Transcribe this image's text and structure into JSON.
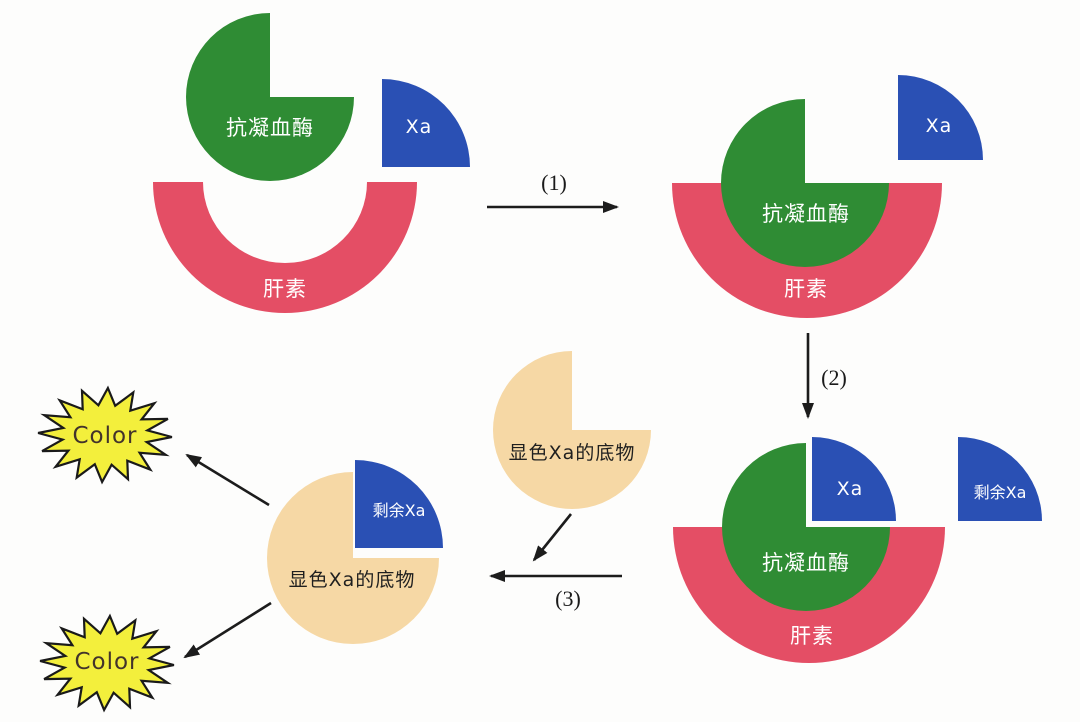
{
  "labels": {
    "antithrombin": "抗凝血酶",
    "heparin": "肝素",
    "factor_xa": "Xa",
    "residual_xa": "剩余Xa",
    "chromogenic_substrate": "显色Xa的底物",
    "color_result": "Color"
  },
  "steps": {
    "s1": "(1)",
    "s2": "(2)",
    "s3": "(3)"
  },
  "colors": {
    "antithrombin-green": "#2f8c34",
    "heparin-pink": "#e44e65",
    "xa-blue": "#2a50b4",
    "substrate-tan": "#f6d8a5",
    "burst-yellow": "#f3ef3c",
    "arrow-black": "#1c1c1c",
    "color-text": "#42332b"
  }
}
